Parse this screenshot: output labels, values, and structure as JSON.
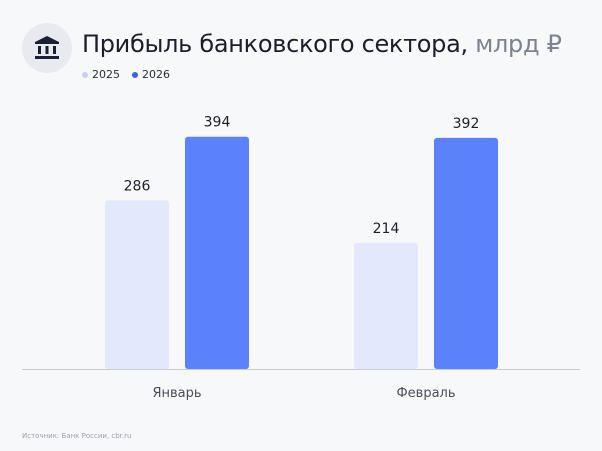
{
  "title": "Прибыль банковского сектора,",
  "unit": "млрд ₽",
  "icon": "bank-icon",
  "source": "Источник: Банк России, cbr.ru",
  "chart_data": {
    "type": "bar",
    "categories": [
      "Январь",
      "Февраль"
    ],
    "series": [
      {
        "name": "2025",
        "values": [
          286,
          214
        ],
        "color": "#e3e8fd"
      },
      {
        "name": "2026",
        "values": [
          394,
          392
        ],
        "color": "#5b82fb"
      }
    ],
    "legend_colors": [
      "#c9cff0",
      "#3d5fe0"
    ],
    "ylim": [
      0,
      575
    ],
    "grid": false,
    "legend": "top-left"
  }
}
